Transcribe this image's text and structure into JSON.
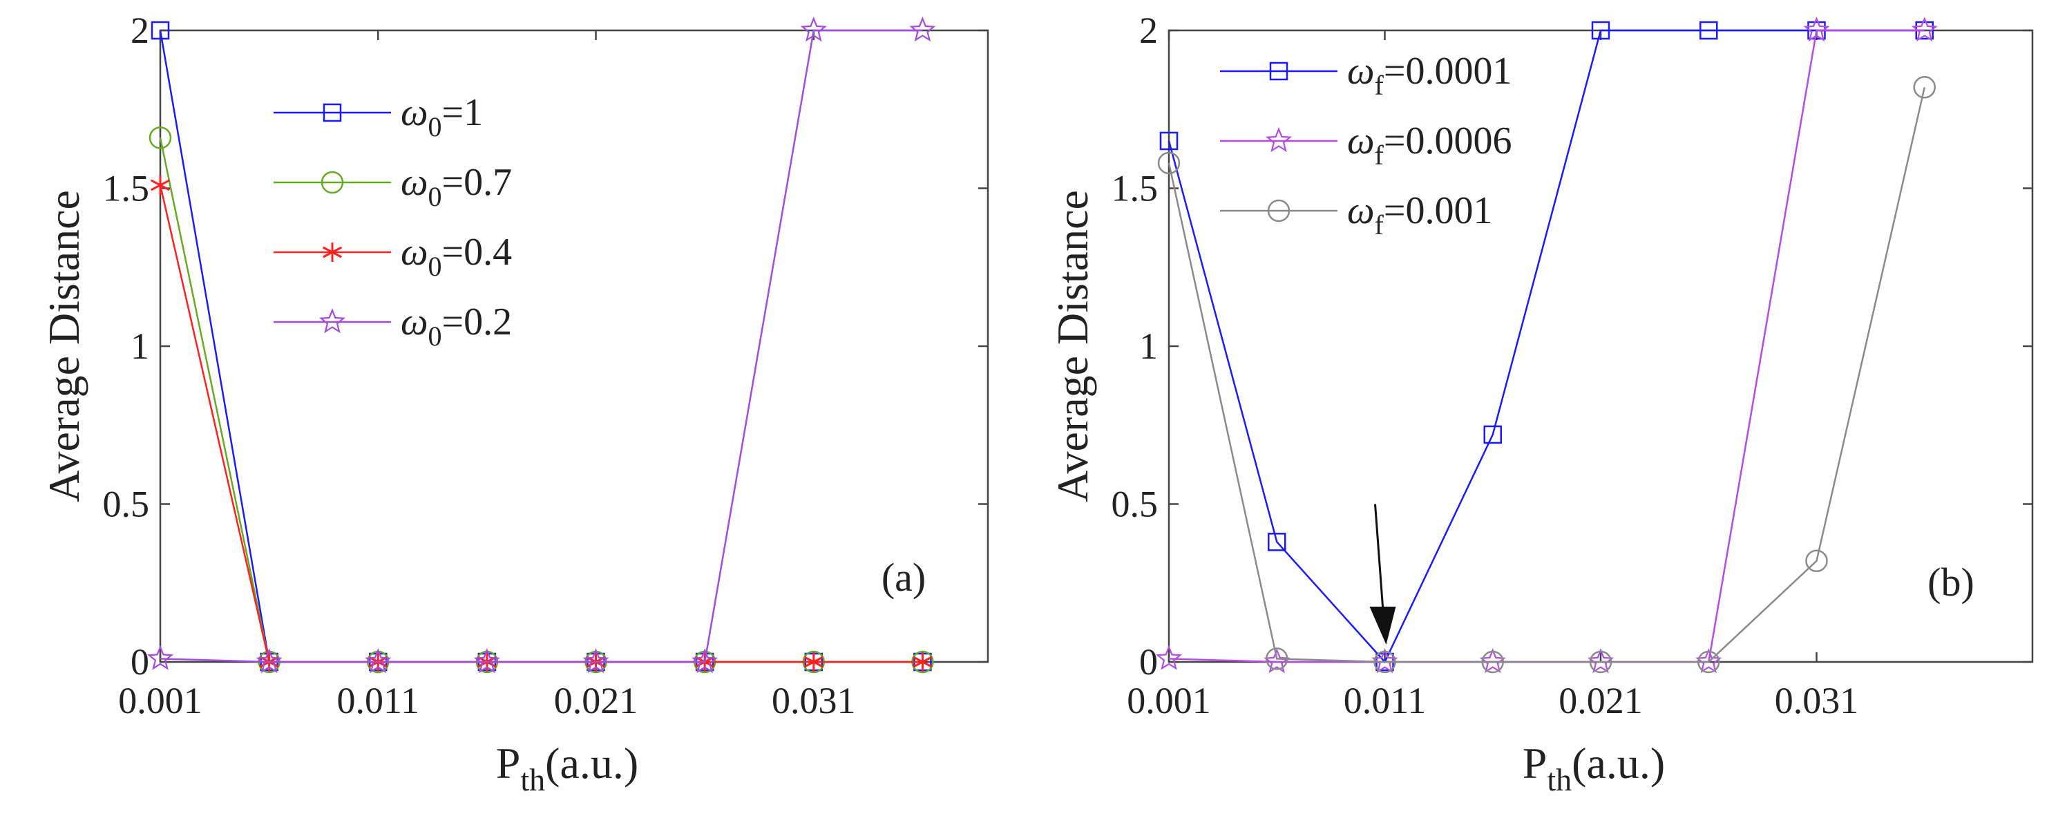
{
  "chart_data": [
    {
      "type": "line",
      "panel_label": "(a)",
      "xlabel": "(a.u.)",
      "xlabel_main": "P",
      "xlabel_sub": "th",
      "ylabel": "Average Distance",
      "xlim": [
        0.001,
        0.039
      ],
      "ylim": [
        0,
        2
      ],
      "xticks": [
        "0.001",
        "0.011",
        "0.021",
        "0.031"
      ],
      "xtick_values": [
        0.001,
        0.011,
        0.021,
        0.031
      ],
      "yticks": [
        "0",
        "0.5",
        "1",
        "1.5",
        "2"
      ],
      "ytick_values": [
        0,
        0.5,
        1,
        1.5,
        2
      ],
      "legend_position": "upper-center",
      "x": [
        0.001,
        0.006,
        0.011,
        0.016,
        0.021,
        0.026,
        0.031,
        0.036
      ],
      "series": [
        {
          "name": "ω",
          "subscript": "0",
          "label_suffix": "=1",
          "color": "#1a1aff",
          "marker": "square",
          "values": [
            2.0,
            0.0,
            0.0,
            0.0,
            0.0,
            0.0,
            0.0,
            0.0
          ]
        },
        {
          "name": "ω",
          "subscript": "0",
          "label_suffix": "=0.7",
          "color": "#66aa22",
          "marker": "circle",
          "values": [
            1.66,
            0.0,
            0.0,
            0.0,
            0.0,
            0.0,
            0.0,
            0.0
          ]
        },
        {
          "name": "ω",
          "subscript": "0",
          "label_suffix": "=0.4",
          "color": "#ff2020",
          "marker": "asterisk",
          "values": [
            1.51,
            0.0,
            0.0,
            0.0,
            0.0,
            0.0,
            0.0,
            0.0
          ]
        },
        {
          "name": "ω",
          "subscript": "0",
          "label_suffix": "=0.2",
          "color": "#a24de0",
          "marker": "star",
          "values": [
            0.01,
            0.0,
            0.0,
            0.0,
            0.0,
            0.0,
            2.0,
            2.0
          ]
        }
      ]
    },
    {
      "type": "line",
      "panel_label": "(b)",
      "xlabel": "(a.u.)",
      "xlabel_main": "P",
      "xlabel_sub": "th",
      "ylabel": "Average Distance",
      "xlim": [
        0.001,
        0.041
      ],
      "ylim": [
        0,
        2
      ],
      "xticks": [
        "0.001",
        "0.011",
        "0.021",
        "0.031"
      ],
      "xtick_values": [
        0.001,
        0.011,
        0.021,
        0.031
      ],
      "yticks": [
        "0",
        "0.5",
        "1",
        "1.5",
        "2"
      ],
      "ytick_values": [
        0,
        0.5,
        1,
        1.5,
        2
      ],
      "legend_position": "upper-left",
      "annotation": {
        "type": "arrow",
        "x": 0.011,
        "y_from": 0.5,
        "y_to": 0.0
      },
      "x": [
        0.001,
        0.006,
        0.011,
        0.016,
        0.021,
        0.026,
        0.031,
        0.036
      ],
      "series": [
        {
          "name": "ω",
          "subscript": "f",
          "label_suffix": "=0.0001",
          "color": "#1a1aff",
          "marker": "square",
          "values": [
            1.65,
            0.38,
            0.0,
            0.72,
            2.0,
            2.0,
            2.0,
            2.0
          ]
        },
        {
          "name": "ω",
          "subscript": "f",
          "label_suffix": "=0.0006",
          "color": "#b44de6",
          "marker": "star",
          "values": [
            0.01,
            0.0,
            0.0,
            0.0,
            0.0,
            0.0,
            2.0,
            2.0
          ]
        },
        {
          "name": "ω",
          "subscript": "f",
          "label_suffix": "=0.001",
          "color": "#8a8a8a",
          "marker": "circle",
          "values": [
            1.58,
            0.01,
            0.0,
            0.0,
            0.0,
            0.0,
            0.32,
            1.82
          ]
        }
      ]
    }
  ]
}
